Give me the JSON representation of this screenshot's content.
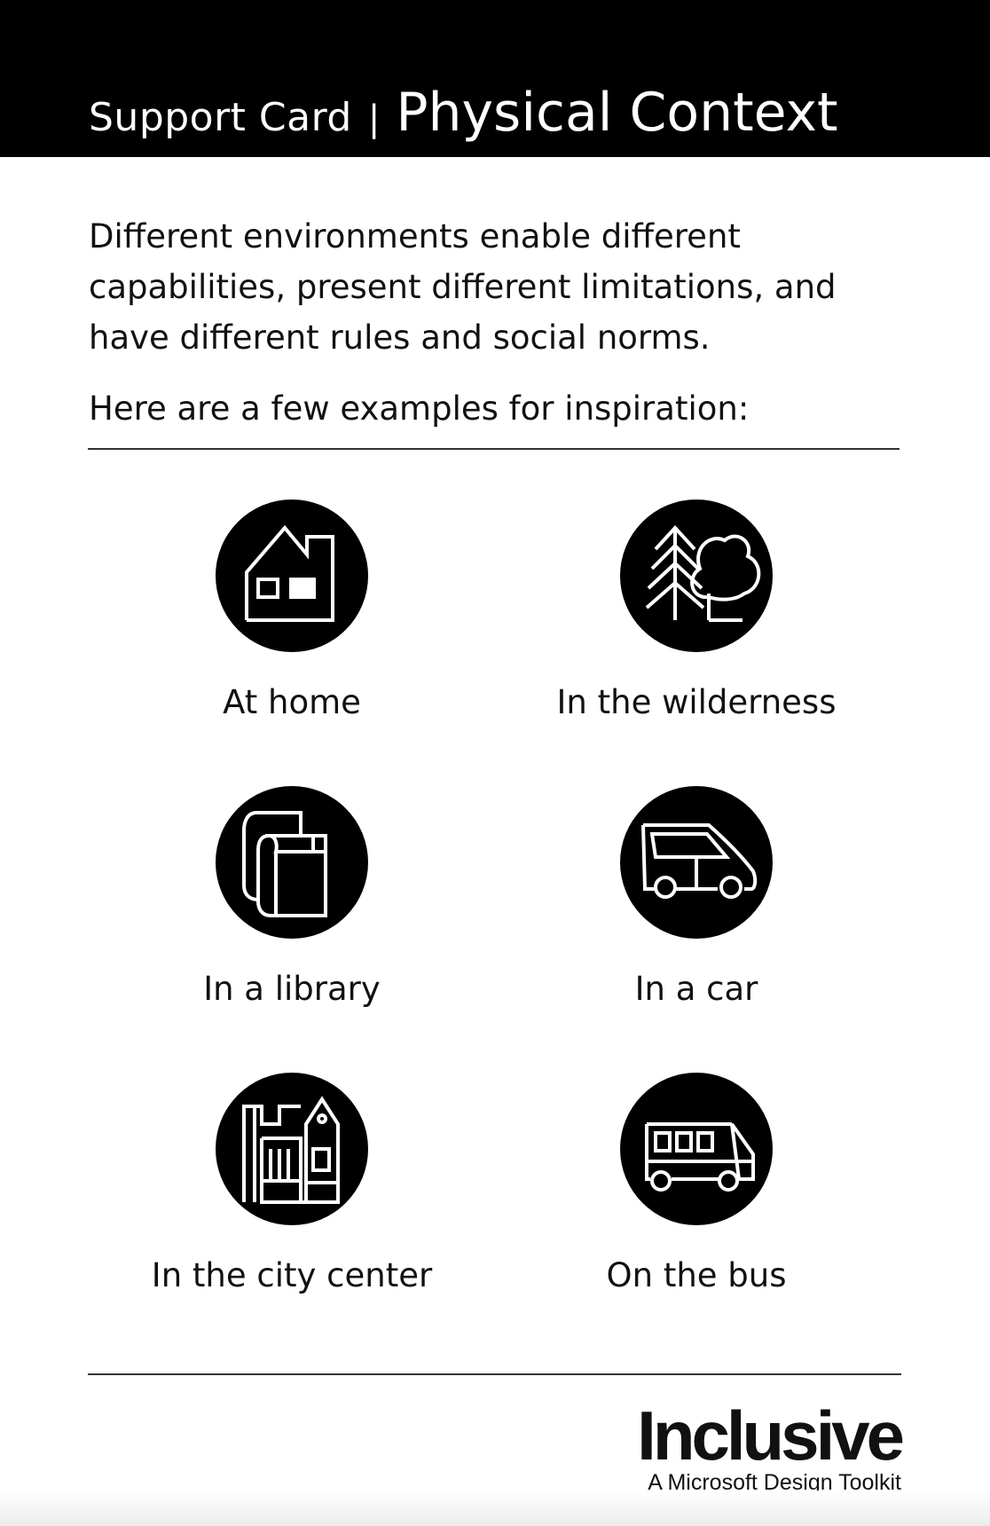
{
  "header": {
    "card_type": "Support Card",
    "separator": "|",
    "title": "Physical Context"
  },
  "intro": "Different environments enable different capabilities, present different limitations, and have different rules and social norms.",
  "subintro": "Here are a few examples for inspiration:",
  "examples": [
    {
      "label": "At home",
      "icon": "house-icon"
    },
    {
      "label": "In the wilderness",
      "icon": "trees-icon"
    },
    {
      "label": "In a library",
      "icon": "books-icon"
    },
    {
      "label": "In a car",
      "icon": "car-icon"
    },
    {
      "label": "In the city center",
      "icon": "city-buildings-icon"
    },
    {
      "label": "On the bus",
      "icon": "bus-icon"
    }
  ],
  "logo": {
    "word": "Inclusive",
    "tagline": "A Microsoft Design Toolkit"
  },
  "colors": {
    "header_bg": "#000000",
    "icon_bg": "#000000",
    "text": "#111111",
    "background": "#ffffff"
  }
}
